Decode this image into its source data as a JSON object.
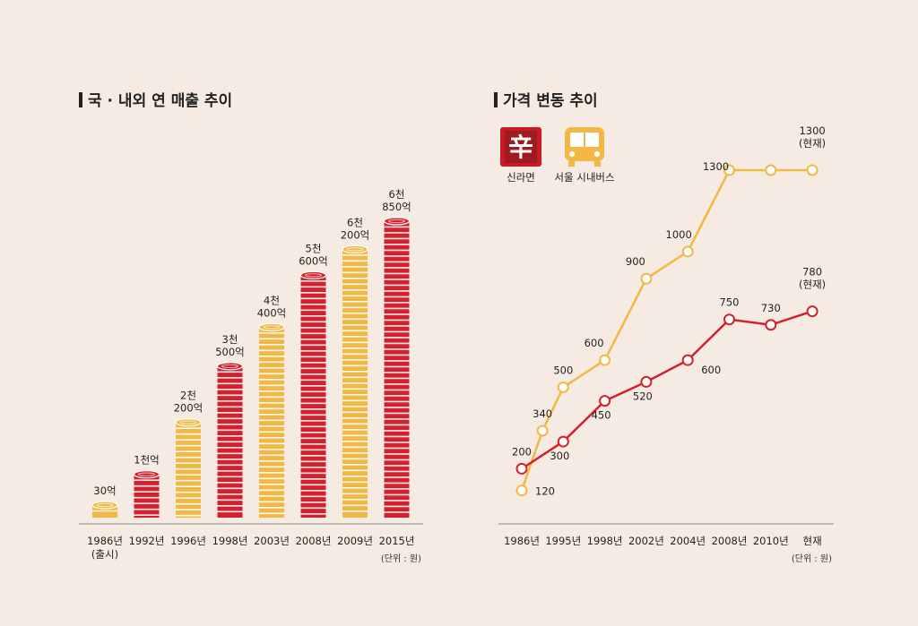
{
  "left_chart": {
    "title": "국 · 내외 연 매출 추이",
    "unit": "(단위 : 원)",
    "chart_data": {
      "type": "bar",
      "title": "국 · 내외 연 매출 추이",
      "categories": [
        "1986년",
        "1992년",
        "1996년",
        "1998년",
        "2003년",
        "2008년",
        "2009년",
        "2015년"
      ],
      "category_sublabels": [
        "(출시)",
        "",
        "",
        "",
        "",
        "",
        "",
        ""
      ],
      "values": [
        30,
        1000,
        2200,
        3500,
        4400,
        5600,
        6200,
        6850
      ],
      "value_labels": [
        [
          "30억"
        ],
        [
          "1천억"
        ],
        [
          "2천",
          "200억"
        ],
        [
          "3천",
          "500억"
        ],
        [
          "4천",
          "400억"
        ],
        [
          "5천",
          "600억"
        ],
        [
          "6천",
          "200억"
        ],
        [
          "6천",
          "850억"
        ]
      ],
      "bar_colors": [
        "#f2b846",
        "#d4202c",
        "#f2b846",
        "#d4202c",
        "#f2b846",
        "#d4202c",
        "#f2b846",
        "#d4202c"
      ],
      "ylim": [
        0,
        7200
      ]
    }
  },
  "right_chart": {
    "title": "가격 변동 추이",
    "unit": "(단위 : 원)",
    "legend": [
      {
        "label": "신라면",
        "icon": "ramen-package-icon",
        "color": "#d4202c"
      },
      {
        "label": "서울 시내버스",
        "icon": "bus-icon",
        "color": "#f2b846"
      }
    ],
    "chart_data": {
      "type": "line",
      "title": "가격 변동 추이",
      "categories": [
        "1986년",
        "1995년",
        "1998년",
        "2002년",
        "2004년",
        "2008년",
        "2010년",
        "현재"
      ],
      "ylim": [
        0,
        1400
      ],
      "series": [
        {
          "name": "신라면",
          "color": "#d4202c",
          "x": [
            0,
            1,
            2,
            3,
            4,
            5,
            6,
            7
          ],
          "values": [
            200,
            300,
            450,
            520,
            600,
            750,
            730,
            780
          ],
          "labels": [
            "200",
            "300",
            "450",
            "520",
            "600",
            "750",
            "730",
            "780|(현재)"
          ]
        },
        {
          "name": "서울 시내버스",
          "color": "#f2b846",
          "x": [
            0,
            0.5,
            1,
            2,
            3,
            4,
            5,
            6,
            7
          ],
          "values": [
            120,
            340,
            500,
            600,
            900,
            1000,
            1300,
            1300,
            1300
          ],
          "labels": [
            "120",
            "340",
            "500",
            "600",
            "900",
            "1000",
            "1300",
            "",
            "1300|(현재)"
          ]
        }
      ]
    }
  }
}
